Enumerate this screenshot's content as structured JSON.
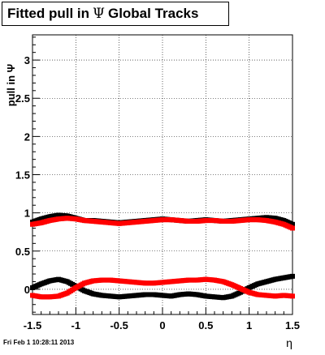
{
  "title": {
    "prefix": "Fitted pull in",
    "symbol": "Ψ",
    "suffix": "Global Tracks"
  },
  "timestamp": "Fri Feb  1 10:28:11 2013",
  "colors": {
    "series_black": "#000000",
    "series_red": "#ff0000",
    "grid": "#000000"
  },
  "chart_data": {
    "type": "scatter",
    "title": "Fitted pull in Ψ  Global Tracks",
    "xlabel": "η",
    "ylabel": "pull in Ψ",
    "xlim": [
      -1.5,
      1.5
    ],
    "ylim": [
      -0.33,
      3.33
    ],
    "xticks": [
      "-1.5",
      "-1",
      "-0.5",
      "0",
      "0.5",
      "1",
      "1.5"
    ],
    "xtick_values": [
      -1.5,
      -1,
      -0.5,
      0,
      0.5,
      1,
      1.5
    ],
    "yticks": [
      "0",
      "0.5",
      "1",
      "1.5",
      "2",
      "2.5",
      "3"
    ],
    "ytick_values": [
      0,
      0.5,
      1,
      1.5,
      2,
      2.5,
      3
    ],
    "grid": true,
    "series": [
      {
        "color": "#000000",
        "marker": "square",
        "x": [
          -1.5,
          -1.4,
          -1.3,
          -1.2,
          -1.1,
          -1.0,
          -0.9,
          -0.8,
          -0.7,
          -0.6,
          -0.5,
          -0.4,
          -0.3,
          -0.2,
          -0.1,
          0.0,
          0.1,
          0.2,
          0.3,
          0.4,
          0.5,
          0.6,
          0.7,
          0.8,
          0.9,
          1.0,
          1.1,
          1.2,
          1.3,
          1.4,
          1.5
        ],
        "y": [
          0.88,
          0.92,
          0.95,
          0.97,
          0.96,
          0.93,
          0.9,
          0.9,
          0.89,
          0.88,
          0.87,
          0.88,
          0.89,
          0.9,
          0.91,
          0.92,
          0.91,
          0.9,
          0.89,
          0.9,
          0.91,
          0.9,
          0.89,
          0.9,
          0.91,
          0.92,
          0.93,
          0.94,
          0.93,
          0.9,
          0.85
        ]
      },
      {
        "color": "#ff0000",
        "marker": "square",
        "x": [
          -1.5,
          -1.4,
          -1.3,
          -1.2,
          -1.1,
          -1.0,
          -0.9,
          -0.8,
          -0.7,
          -0.6,
          -0.5,
          -0.4,
          -0.3,
          -0.2,
          -0.1,
          0.0,
          0.1,
          0.2,
          0.3,
          0.4,
          0.5,
          0.6,
          0.7,
          0.8,
          0.9,
          1.0,
          1.1,
          1.2,
          1.3,
          1.4,
          1.5
        ],
        "y": [
          0.85,
          0.87,
          0.9,
          0.92,
          0.93,
          0.92,
          0.9,
          0.89,
          0.88,
          0.87,
          0.86,
          0.87,
          0.88,
          0.89,
          0.9,
          0.91,
          0.91,
          0.9,
          0.89,
          0.89,
          0.9,
          0.9,
          0.89,
          0.89,
          0.9,
          0.91,
          0.91,
          0.9,
          0.88,
          0.85,
          0.8
        ]
      },
      {
        "color": "#000000",
        "marker": "square",
        "x": [
          -1.5,
          -1.4,
          -1.3,
          -1.2,
          -1.1,
          -1.0,
          -0.9,
          -0.8,
          -0.7,
          -0.6,
          -0.5,
          -0.4,
          -0.3,
          -0.2,
          -0.1,
          0.0,
          0.1,
          0.2,
          0.3,
          0.4,
          0.5,
          0.6,
          0.7,
          0.8,
          0.9,
          1.0,
          1.1,
          1.2,
          1.3,
          1.4,
          1.5
        ],
        "y": [
          0.02,
          0.07,
          0.11,
          0.13,
          0.1,
          0.04,
          -0.02,
          -0.06,
          -0.08,
          -0.09,
          -0.1,
          -0.09,
          -0.08,
          -0.07,
          -0.07,
          -0.08,
          -0.09,
          -0.07,
          -0.06,
          -0.07,
          -0.09,
          -0.1,
          -0.11,
          -0.09,
          -0.04,
          0.02,
          0.07,
          0.1,
          0.13,
          0.15,
          0.17
        ]
      },
      {
        "color": "#ff0000",
        "marker": "square",
        "x": [
          -1.5,
          -1.4,
          -1.3,
          -1.2,
          -1.1,
          -1.0,
          -0.9,
          -0.8,
          -0.7,
          -0.6,
          -0.5,
          -0.4,
          -0.3,
          -0.2,
          -0.1,
          0.0,
          0.1,
          0.2,
          0.3,
          0.4,
          0.5,
          0.6,
          0.7,
          0.8,
          0.9,
          1.0,
          1.1,
          1.2,
          1.3,
          1.4,
          1.5
        ],
        "y": [
          -0.08,
          -0.1,
          -0.1,
          -0.09,
          -0.05,
          0.02,
          0.08,
          0.11,
          0.12,
          0.12,
          0.11,
          0.1,
          0.09,
          0.08,
          0.08,
          0.09,
          0.1,
          0.11,
          0.12,
          0.12,
          0.13,
          0.12,
          0.1,
          0.06,
          0.01,
          -0.04,
          -0.07,
          -0.08,
          -0.09,
          -0.08,
          -0.09
        ]
      }
    ]
  }
}
